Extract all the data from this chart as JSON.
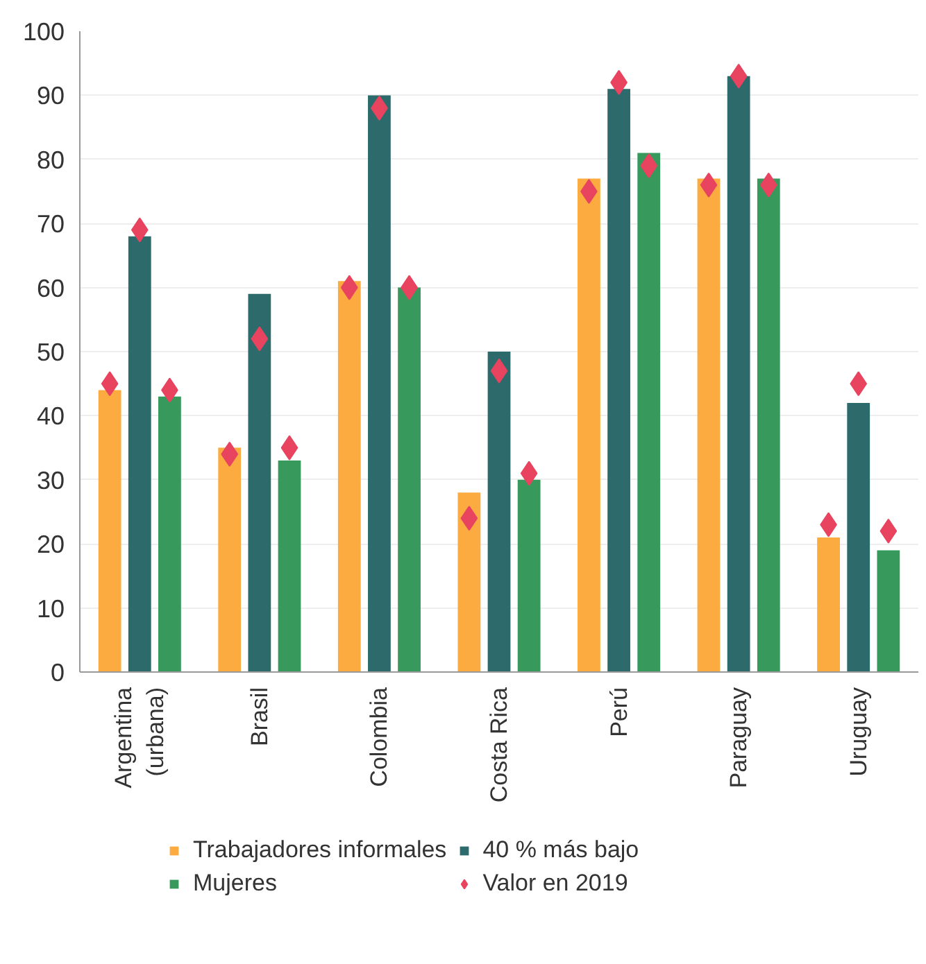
{
  "chart_data": {
    "type": "bar",
    "categories": [
      "Argentina\n(urbana)",
      "Brasil",
      "Colombia",
      "Costa Rica",
      "Perú",
      "Paraguay",
      "Uruguay"
    ],
    "series": [
      {
        "name": "Trabajadores informales",
        "color": "#fcab40",
        "values": [
          44,
          35,
          61,
          28,
          77,
          77,
          21
        ]
      },
      {
        "name": "40 % más bajo",
        "color": "#2d6a6c",
        "values": [
          68,
          59,
          90,
          50,
          91,
          93,
          42
        ]
      },
      {
        "name": "Mujeres",
        "color": "#379a5c",
        "values": [
          43,
          33,
          60,
          30,
          81,
          77,
          19
        ]
      },
      {
        "type": "scatter",
        "name": "Valor en 2019",
        "color": "#e8435f",
        "marker": "diamond",
        "values": [
          45,
          34,
          60,
          24,
          75,
          76,
          23
        ]
      },
      {
        "type": "scatter",
        "color": "#e8435f",
        "marker": "diamond",
        "values": [
          69,
          52,
          88,
          47,
          92,
          93,
          45
        ]
      },
      {
        "type": "scatter",
        "color": "#e8435f",
        "marker": "diamond",
        "values": [
          44,
          35,
          60,
          31,
          79,
          76,
          22
        ]
      }
    ],
    "ylim": [
      0,
      100
    ],
    "yticks": [
      0,
      10,
      20,
      30,
      40,
      50,
      60,
      70,
      80,
      90,
      100
    ],
    "grid": "y",
    "legend": "bottom"
  }
}
